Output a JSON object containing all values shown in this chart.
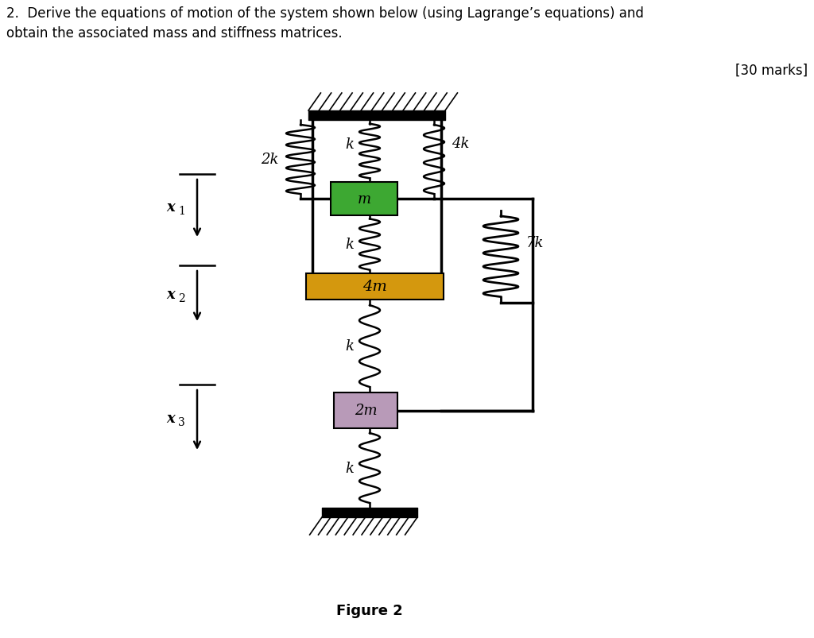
{
  "title_text": "2.  Derive the equations of motion of the system shown below (using Lagrange’s equations) and\nobtain the associated mass and stiffness matrices.",
  "marks_text": "[30 marks]",
  "figure_label": "Figure 2",
  "bg_color": "#ffffff",
  "mass_m_color": "#3da832",
  "mass_4m_color": "#d4980e",
  "mass_2m_color": "#b89ab8",
  "mass_m_label": "m",
  "mass_4m_label": "4m",
  "mass_2m_label": "2m",
  "label_2k": "2k",
  "label_k_top": "k",
  "label_k_mid1": "k",
  "label_k_mid2": "k",
  "label_k_bot": "k",
  "label_4k": "4k",
  "label_7k": "7k",
  "x1_label": "x",
  "x1_sub": "1",
  "x2_label": "x",
  "x2_sub": "2",
  "x3_label": "x",
  "x3_sub": "3"
}
